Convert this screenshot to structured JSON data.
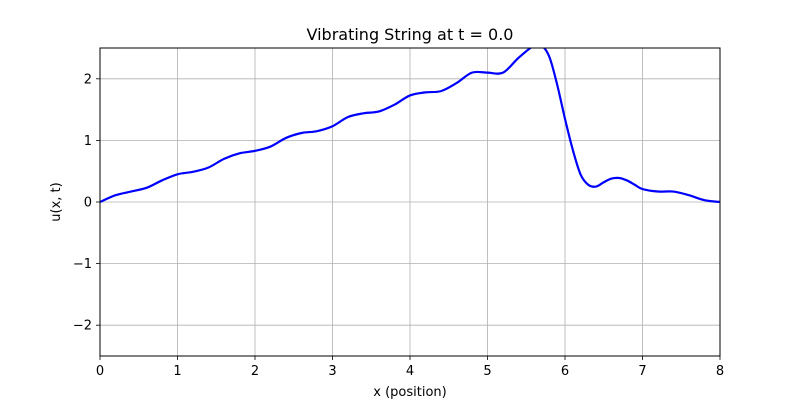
{
  "chart_data": {
    "type": "line",
    "title": "Vibrating String at t = 0.0",
    "xlabel": "x (position)",
    "ylabel": "u(x, t)",
    "xlim": [
      0,
      8
    ],
    "ylim": [
      -2.5,
      2.5
    ],
    "xticks": [
      0,
      1,
      2,
      3,
      4,
      5,
      6,
      7,
      8
    ],
    "xtick_labels": [
      "0",
      "1",
      "2",
      "3",
      "4",
      "5",
      "6",
      "7",
      "8"
    ],
    "yticks": [
      -2,
      -1,
      0,
      1,
      2
    ],
    "ytick_labels": [
      "−2",
      "−1",
      "0",
      "1",
      "2"
    ],
    "grid": true,
    "legend": "none",
    "colors": {
      "line": "#0000ff",
      "grid": "#b0b0b0",
      "axes": "#000000"
    },
    "series": [
      {
        "x": [
          0,
          0.2,
          0.4,
          0.6,
          0.8,
          1.0,
          1.2,
          1.4,
          1.6,
          1.8,
          2.0,
          2.2,
          2.4,
          2.6,
          2.8,
          3.0,
          3.2,
          3.4,
          3.6,
          3.8,
          4.0,
          4.2,
          4.4,
          4.6,
          4.8,
          5.0,
          5.2,
          5.4,
          5.6,
          5.7,
          5.8,
          5.9,
          6.0,
          6.1,
          6.2,
          6.3,
          6.4,
          6.5,
          6.6,
          6.7,
          6.8,
          6.9,
          7.0,
          7.2,
          7.4,
          7.6,
          7.8,
          8.0
        ],
        "y": [
          0,
          0.11,
          0.17,
          0.23,
          0.35,
          0.45,
          0.49,
          0.56,
          0.7,
          0.79,
          0.83,
          0.9,
          1.04,
          1.12,
          1.15,
          1.23,
          1.38,
          1.44,
          1.47,
          1.58,
          1.73,
          1.78,
          1.8,
          1.93,
          2.1,
          2.1,
          2.1,
          2.34,
          2.54,
          2.54,
          2.35,
          1.9,
          1.35,
          0.85,
          0.45,
          0.28,
          0.25,
          0.32,
          0.38,
          0.39,
          0.35,
          0.28,
          0.21,
          0.17,
          0.17,
          0.11,
          0.03,
          0.0
        ]
      }
    ]
  }
}
